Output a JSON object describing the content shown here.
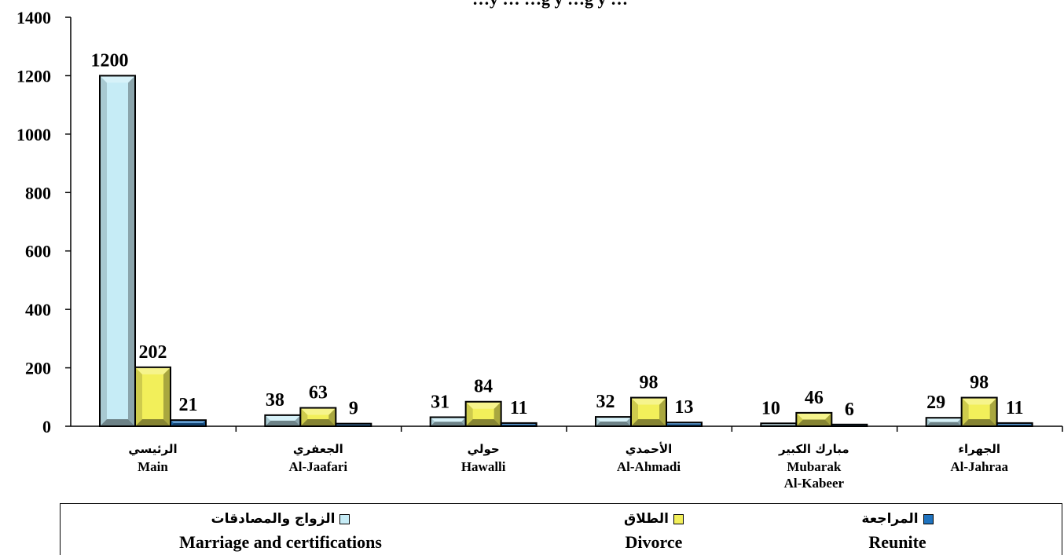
{
  "chart_data": {
    "type": "bar",
    "title": "…y … …g y …g y …",
    "categories": [
      {
        "ar": "الرئيسي",
        "en": "Main"
      },
      {
        "ar": "الجعفري",
        "en": "Al-Jaafari"
      },
      {
        "ar": "حولي",
        "en": "Hawalli"
      },
      {
        "ar": "الأحمدي",
        "en": "Al-Ahmadi"
      },
      {
        "ar": "مبارك الكبير",
        "en": [
          "Mubarak",
          "Al-Kabeer"
        ]
      },
      {
        "ar": "الجهراء",
        "en": "Al-Jahraa"
      }
    ],
    "series": [
      {
        "name_ar": "الزواج والمصادقات",
        "name_en": "Marriage and certifications",
        "color": "#c6ecf6",
        "values": [
          1200,
          38,
          31,
          32,
          10,
          29
        ]
      },
      {
        "name_ar": "الطلاق",
        "name_en": "Divorce",
        "color": "#f2ef5a",
        "values": [
          202,
          63,
          84,
          98,
          46,
          98
        ]
      },
      {
        "name_ar": "المراجعة",
        "name_en": "Reunite",
        "color": "#1f73bf",
        "values": [
          21,
          9,
          11,
          13,
          6,
          11
        ]
      }
    ],
    "ylim": [
      0,
      1400
    ],
    "yticks": [
      0,
      200,
      400,
      600,
      800,
      1000,
      1200,
      1400
    ],
    "grid": false,
    "legend_position": "bottom"
  }
}
